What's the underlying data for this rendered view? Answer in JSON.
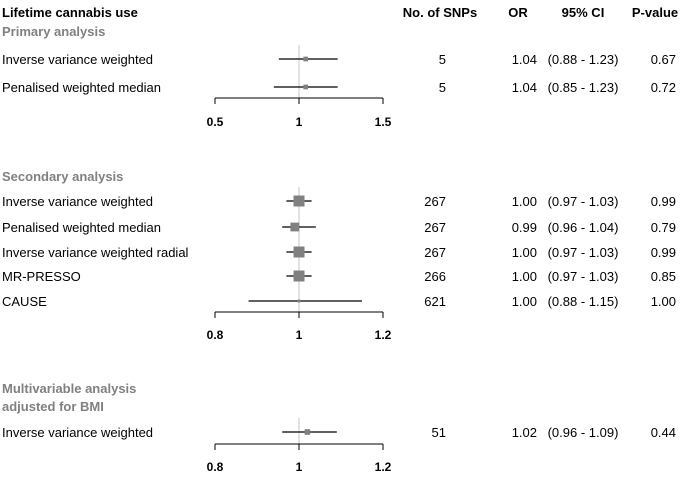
{
  "headers": {
    "outcome": "Lifetime cannabis use",
    "snps": "No. of SNPs",
    "or": "OR",
    "ci": "95% CI",
    "p": "P-value"
  },
  "chart_data": [
    {
      "type": "forest",
      "title": "Primary analysis",
      "xlim": [
        0.5,
        1.5
      ],
      "ticks": [
        "0.5",
        "1",
        "1.5"
      ],
      "reference_line": 1,
      "rows": [
        {
          "method": "Inverse variance weighted",
          "snps": "5",
          "or": 1.04,
          "or_text": "1.04",
          "lo": 0.88,
          "hi": 1.23,
          "ci_text": "(0.88 - 1.23)",
          "p": "0.67",
          "weight": 0.3
        },
        {
          "method": "Penalised weighted median",
          "snps": "5",
          "or": 1.04,
          "or_text": "1.04",
          "lo": 0.85,
          "hi": 1.23,
          "ci_text": "(0.85 - 1.23)",
          "p": "0.72",
          "weight": 0.3
        }
      ]
    },
    {
      "type": "forest",
      "title": "Secondary analysis",
      "xlim": [
        0.8,
        1.2
      ],
      "ticks": [
        "0.8",
        "1",
        "1.2"
      ],
      "reference_line": 1,
      "rows": [
        {
          "method": "Inverse variance weighted",
          "snps": "267",
          "or": 1.0,
          "or_text": "1.00",
          "lo": 0.97,
          "hi": 1.03,
          "ci_text": "(0.97 - 1.03)",
          "p": "0.99",
          "weight": 1
        },
        {
          "method": "Penalised weighted median",
          "snps": "267",
          "or": 0.99,
          "or_text": "0.99",
          "lo": 0.96,
          "hi": 1.04,
          "ci_text": "(0.96 - 1.04)",
          "p": "0.79",
          "weight": 0.75
        },
        {
          "method": "Inverse variance weighted radial",
          "snps": "267",
          "or": 1.0,
          "or_text": "1.00",
          "lo": 0.97,
          "hi": 1.03,
          "ci_text": "(0.97 - 1.03)",
          "p": "0.99",
          "weight": 1
        },
        {
          "method": "MR-PRESSO",
          "snps": "266",
          "or": 1.0,
          "or_text": "1.00",
          "lo": 0.97,
          "hi": 1.03,
          "ci_text": "(0.97 - 1.03)",
          "p": "0.85",
          "weight": 1
        },
        {
          "method": "CAUSE",
          "snps": "621",
          "or": 1.0,
          "or_text": "1.00",
          "lo": 0.88,
          "hi": 1.15,
          "ci_text": "(0.88 - 1.15)",
          "p": "1.00",
          "weight": 0.1
        }
      ]
    },
    {
      "type": "forest",
      "title": "Multivariable analysis adjusted for BMI",
      "title_lines": [
        "Multivariable analysis",
        "adjusted for BMI"
      ],
      "xlim": [
        0.8,
        1.2
      ],
      "ticks": [
        "0.8",
        "1",
        "1.2"
      ],
      "reference_line": 1,
      "rows": [
        {
          "method": "Inverse variance weighted",
          "snps": "51",
          "or": 1.02,
          "or_text": "1.02",
          "lo": 0.96,
          "hi": 1.09,
          "ci_text": "(0.96 - 1.09)",
          "p": "0.44",
          "weight": 0.4
        }
      ]
    }
  ],
  "colors": {
    "point": "#808080",
    "ci": "#000000",
    "reference": "#d9d9d9",
    "section_title": "#808080"
  }
}
